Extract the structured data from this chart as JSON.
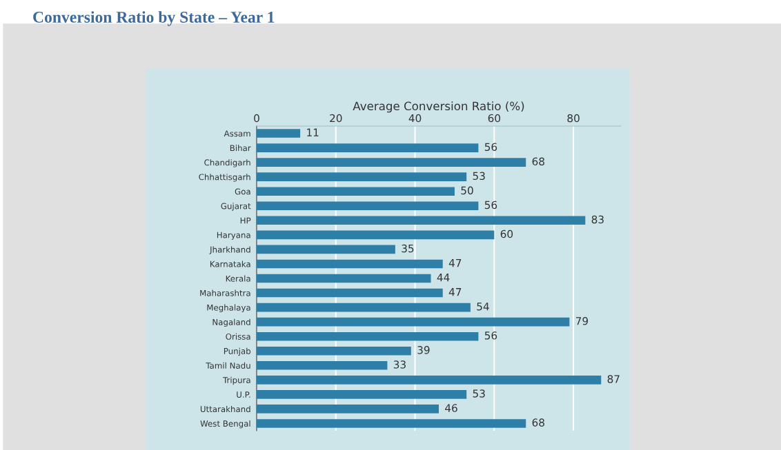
{
  "chart_data": {
    "type": "bar",
    "orientation": "horizontal",
    "title": "Conversion Ratio by State – Year 1",
    "xlabel": "Average Conversion Ratio (%)",
    "categories": [
      "Assam",
      "Bihar",
      "Chandigarh",
      "Chhattisgarh",
      "Goa",
      "Gujarat",
      "HP",
      "Haryana",
      "Jharkhand",
      "Karnataka",
      "Kerala",
      "Maharashtra",
      "Meghalaya",
      "Nagaland",
      "Orissa",
      "Punjab",
      "Tamil Nadu",
      "Tripura",
      "U.P.",
      "Uttarakhand",
      "West Bengal"
    ],
    "values": [
      11,
      56,
      68,
      53,
      50,
      56,
      83,
      60,
      35,
      47,
      44,
      47,
      54,
      79,
      56,
      39,
      33,
      87,
      53,
      46,
      68
    ],
    "color": "#2e7fa8",
    "xlim": [
      0,
      92
    ],
    "xticks": [
      0,
      20,
      40,
      60,
      80
    ],
    "grid": "x",
    "data_labels": true,
    "legend": false
  }
}
